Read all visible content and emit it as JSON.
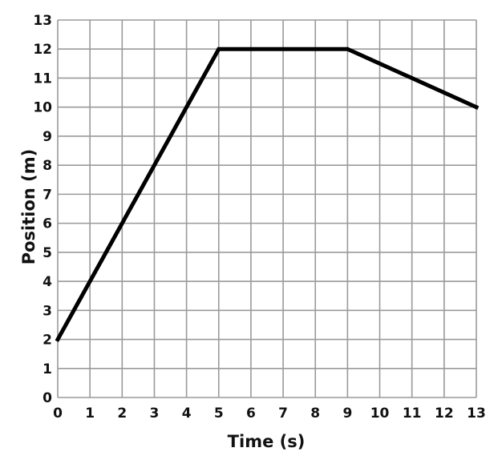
{
  "chart_data": {
    "type": "line",
    "title": "",
    "xlabel": "Time (s)",
    "ylabel": "Position (m)",
    "xlim": [
      0,
      13
    ],
    "ylim": [
      0,
      13
    ],
    "x_ticks": [
      0,
      1,
      2,
      3,
      4,
      5,
      6,
      7,
      8,
      9,
      10,
      11,
      12,
      13
    ],
    "y_ticks": [
      0,
      1,
      2,
      3,
      4,
      5,
      6,
      7,
      8,
      9,
      10,
      11,
      12,
      13
    ],
    "grid": true,
    "legend": "none",
    "series": [
      {
        "x": [
          0,
          5,
          9,
          13
        ],
        "y": [
          2,
          12,
          12,
          10
        ]
      }
    ],
    "colors": {
      "line": "#000000",
      "grid": "#9a9a9a",
      "text": "#111111",
      "background": "#ffffff"
    }
  }
}
